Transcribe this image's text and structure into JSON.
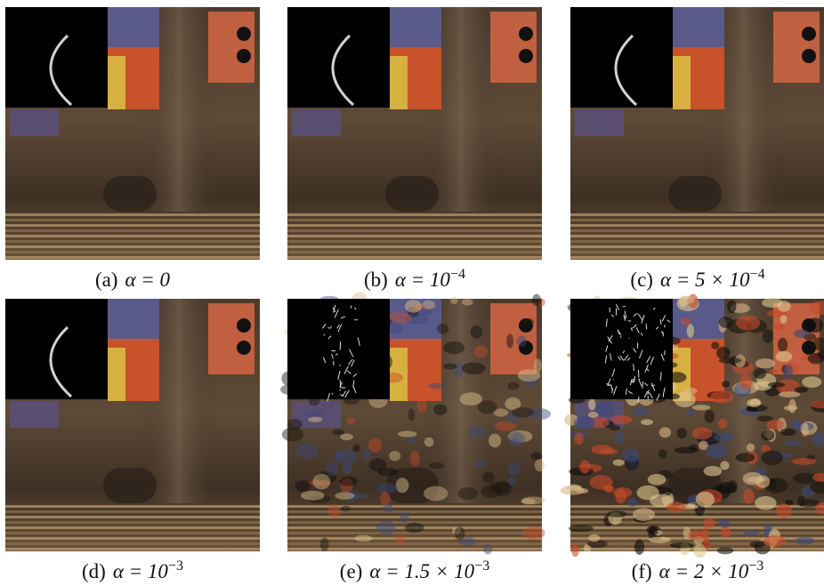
{
  "figure": {
    "panels": [
      {
        "label": "(a)",
        "math": "α = 0"
      },
      {
        "label": "(b)",
        "math": "α = 10",
        "sup": "−4"
      },
      {
        "label": "(c)",
        "math": "α = 5 × 10",
        "sup": "−4"
      },
      {
        "label": "(d)",
        "math": "α = 10",
        "sup": "−3"
      },
      {
        "label": "(e)",
        "math": "α = 1.5 × 10",
        "sup": "−3"
      },
      {
        "label": "(f)",
        "math": "α = 2 × 10",
        "sup": "−3"
      }
    ]
  }
}
